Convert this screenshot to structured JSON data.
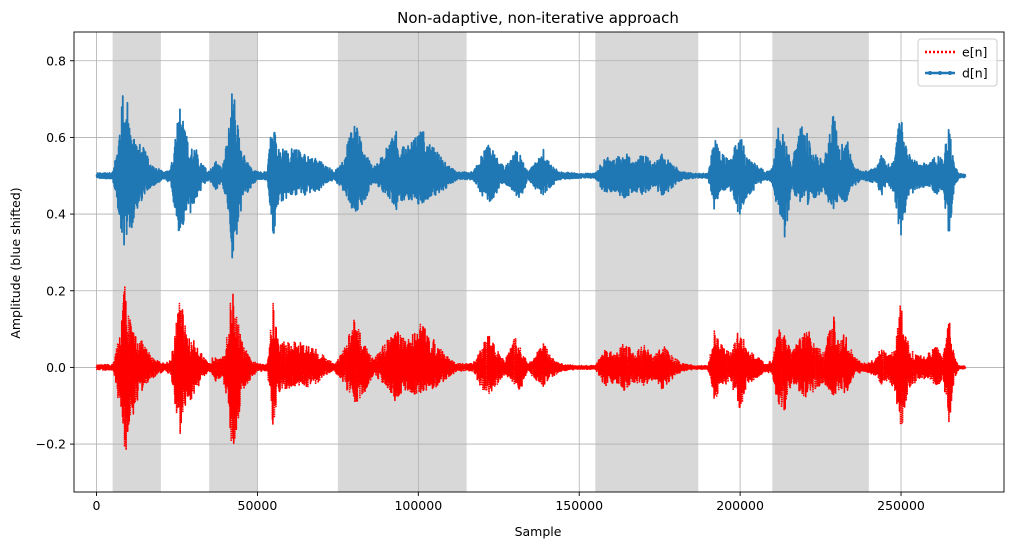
{
  "chart_data": {
    "type": "line",
    "title": "Non-adaptive, non-iterative approach",
    "xlabel": "Sample",
    "ylabel": "Amplitude (blue shifted)",
    "xlim": [
      -7000,
      282000
    ],
    "ylim": [
      -0.325,
      0.875
    ],
    "grid": true,
    "legend_position": "top-right",
    "x_ticks": [
      0,
      50000,
      100000,
      150000,
      200000,
      250000
    ],
    "x_tick_labels": [
      "0",
      "50000",
      "100000",
      "150000",
      "200000",
      "250000"
    ],
    "y_ticks": [
      -0.2,
      0.0,
      0.2,
      0.4,
      0.6,
      0.8
    ],
    "y_tick_labels": [
      "−0.2",
      "0.0",
      "0.2",
      "0.4",
      "0.6",
      "0.8"
    ],
    "shaded_regions": [
      [
        5000,
        20000
      ],
      [
        35000,
        50000
      ],
      [
        75000,
        115000
      ],
      [
        155000,
        187000
      ],
      [
        210000,
        240000
      ]
    ],
    "shade_color": "#d6d6d6",
    "x_max": 270000,
    "series": [
      {
        "name": "e[n]",
        "color": "#ff0000",
        "style": "dotted",
        "baseline": 0.0,
        "envelope": [
          [
            0,
            0.006,
            -0.006
          ],
          [
            5000,
            0.008,
            -0.008
          ],
          [
            7500,
            0.1,
            -0.12
          ],
          [
            8500,
            0.24,
            -0.26
          ],
          [
            9500,
            0.18,
            -0.2
          ],
          [
            11000,
            0.1,
            -0.14
          ],
          [
            13000,
            0.08,
            -0.08
          ],
          [
            15000,
            0.06,
            -0.05
          ],
          [
            17000,
            0.03,
            -0.03
          ],
          [
            19000,
            0.02,
            -0.02
          ],
          [
            21000,
            0.01,
            -0.01
          ],
          [
            23000,
            0.02,
            -0.02
          ],
          [
            26000,
            0.19,
            -0.18
          ],
          [
            27500,
            0.12,
            -0.1
          ],
          [
            29000,
            0.07,
            -0.1
          ],
          [
            31000,
            0.07,
            -0.06
          ],
          [
            33000,
            0.03,
            -0.03
          ],
          [
            35000,
            0.01,
            -0.01
          ],
          [
            37000,
            0.04,
            -0.04
          ],
          [
            39000,
            0.02,
            -0.02
          ],
          [
            41000,
            0.1,
            -0.1
          ],
          [
            42000,
            0.22,
            -0.24
          ],
          [
            43500,
            0.14,
            -0.17
          ],
          [
            45500,
            0.06,
            -0.06
          ],
          [
            48000,
            0.02,
            -0.03
          ],
          [
            50000,
            0.01,
            -0.01
          ],
          [
            53000,
            0.01,
            -0.01
          ],
          [
            55000,
            0.18,
            -0.18
          ],
          [
            56500,
            0.07,
            -0.07
          ],
          [
            59000,
            0.07,
            -0.06
          ],
          [
            62000,
            0.07,
            -0.05
          ],
          [
            65000,
            0.06,
            -0.05
          ],
          [
            68000,
            0.05,
            -0.05
          ],
          [
            71000,
            0.03,
            -0.02
          ],
          [
            74000,
            0.01,
            -0.01
          ],
          [
            77000,
            0.05,
            -0.05
          ],
          [
            80000,
            0.13,
            -0.1
          ],
          [
            83000,
            0.07,
            -0.07
          ],
          [
            86000,
            0.02,
            -0.02
          ],
          [
            90000,
            0.07,
            -0.05
          ],
          [
            93000,
            0.11,
            -0.09
          ],
          [
            96000,
            0.07,
            -0.06
          ],
          [
            99000,
            0.1,
            -0.07
          ],
          [
            101000,
            0.12,
            -0.08
          ],
          [
            103000,
            0.09,
            -0.06
          ],
          [
            106000,
            0.06,
            -0.05
          ],
          [
            109000,
            0.03,
            -0.03
          ],
          [
            112000,
            0.01,
            -0.01
          ],
          [
            117000,
            0.01,
            -0.01
          ],
          [
            120000,
            0.06,
            -0.06
          ],
          [
            122000,
            0.09,
            -0.07
          ],
          [
            124000,
            0.05,
            -0.05
          ],
          [
            127000,
            0.02,
            -0.02
          ],
          [
            130000,
            0.08,
            -0.05
          ],
          [
            132000,
            0.05,
            -0.06
          ],
          [
            134000,
            0.01,
            -0.01
          ],
          [
            137000,
            0.04,
            -0.04
          ],
          [
            139000,
            0.07,
            -0.05
          ],
          [
            141000,
            0.03,
            -0.03
          ],
          [
            144000,
            0.01,
            -0.01
          ],
          [
            150000,
            0.005,
            -0.005
          ],
          [
            155000,
            0.005,
            -0.005
          ],
          [
            158000,
            0.05,
            -0.05
          ],
          [
            161000,
            0.04,
            -0.04
          ],
          [
            164000,
            0.07,
            -0.06
          ],
          [
            167000,
            0.04,
            -0.04
          ],
          [
            170000,
            0.06,
            -0.05
          ],
          [
            173000,
            0.03,
            -0.03
          ],
          [
            176000,
            0.06,
            -0.06
          ],
          [
            179000,
            0.03,
            -0.03
          ],
          [
            182000,
            0.01,
            -0.01
          ],
          [
            186000,
            0.005,
            -0.005
          ],
          [
            190000,
            0.005,
            -0.005
          ],
          [
            192000,
            0.1,
            -0.09
          ],
          [
            194000,
            0.06,
            -0.05
          ],
          [
            197000,
            0.04,
            -0.04
          ],
          [
            200000,
            0.11,
            -0.11
          ],
          [
            202000,
            0.05,
            -0.06
          ],
          [
            205000,
            0.03,
            -0.03
          ],
          [
            208000,
            0.01,
            -0.01
          ],
          [
            210000,
            0.02,
            -0.02
          ],
          [
            212000,
            0.12,
            -0.11
          ],
          [
            214000,
            0.09,
            -0.12
          ],
          [
            216000,
            0.04,
            -0.04
          ],
          [
            219000,
            0.08,
            -0.07
          ],
          [
            221000,
            0.11,
            -0.08
          ],
          [
            223000,
            0.06,
            -0.06
          ],
          [
            226000,
            0.04,
            -0.04
          ],
          [
            229000,
            0.14,
            -0.08
          ],
          [
            231000,
            0.07,
            -0.06
          ],
          [
            233000,
            0.11,
            -0.07
          ],
          [
            235000,
            0.03,
            -0.03
          ],
          [
            238000,
            0.01,
            -0.01
          ],
          [
            242000,
            0.02,
            -0.02
          ],
          [
            244000,
            0.06,
            -0.05
          ],
          [
            246000,
            0.03,
            -0.03
          ],
          [
            248000,
            0.05,
            -0.06
          ],
          [
            250000,
            0.18,
            -0.17
          ],
          [
            251500,
            0.09,
            -0.09
          ],
          [
            253000,
            0.05,
            -0.05
          ],
          [
            256000,
            0.03,
            -0.03
          ],
          [
            259000,
            0.04,
            -0.03
          ],
          [
            261000,
            0.06,
            -0.05
          ],
          [
            263000,
            0.04,
            -0.04
          ],
          [
            265000,
            0.13,
            -0.16
          ],
          [
            266500,
            0.03,
            -0.03
          ],
          [
            268000,
            0.005,
            -0.005
          ],
          [
            270000,
            0.003,
            -0.003
          ]
        ]
      },
      {
        "name": "d[n]",
        "color": "#1f77b4",
        "style": "solid-markers",
        "baseline": 0.5,
        "envelope": [
          [
            0,
            0.007,
            -0.007
          ],
          [
            5000,
            0.008,
            -0.008
          ],
          [
            7500,
            0.12,
            -0.13
          ],
          [
            8500,
            0.3,
            -0.22
          ],
          [
            9500,
            0.2,
            -0.18
          ],
          [
            11000,
            0.1,
            -0.14
          ],
          [
            13000,
            0.09,
            -0.08
          ],
          [
            15000,
            0.07,
            -0.05
          ],
          [
            17000,
            0.03,
            -0.03
          ],
          [
            19000,
            0.02,
            -0.02
          ],
          [
            21000,
            0.01,
            -0.01
          ],
          [
            23000,
            0.02,
            -0.02
          ],
          [
            26000,
            0.2,
            -0.18
          ],
          [
            27500,
            0.12,
            -0.1
          ],
          [
            29000,
            0.07,
            -0.1
          ],
          [
            31000,
            0.07,
            -0.06
          ],
          [
            33000,
            0.03,
            -0.03
          ],
          [
            35000,
            0.01,
            -0.01
          ],
          [
            37000,
            0.04,
            -0.04
          ],
          [
            39000,
            0.02,
            -0.02
          ],
          [
            41000,
            0.12,
            -0.1
          ],
          [
            42000,
            0.27,
            -0.24
          ],
          [
            43500,
            0.16,
            -0.17
          ],
          [
            45500,
            0.06,
            -0.06
          ],
          [
            48000,
            0.02,
            -0.03
          ],
          [
            50000,
            0.01,
            -0.01
          ],
          [
            53000,
            0.01,
            -0.01
          ],
          [
            55000,
            0.18,
            -0.19
          ],
          [
            56500,
            0.07,
            -0.07
          ],
          [
            59000,
            0.07,
            -0.06
          ],
          [
            62000,
            0.07,
            -0.05
          ],
          [
            65000,
            0.06,
            -0.05
          ],
          [
            68000,
            0.05,
            -0.05
          ],
          [
            71000,
            0.03,
            -0.02
          ],
          [
            74000,
            0.01,
            -0.01
          ],
          [
            77000,
            0.05,
            -0.05
          ],
          [
            80000,
            0.15,
            -0.1
          ],
          [
            83000,
            0.07,
            -0.07
          ],
          [
            86000,
            0.02,
            -0.02
          ],
          [
            90000,
            0.07,
            -0.05
          ],
          [
            93000,
            0.12,
            -0.09
          ],
          [
            96000,
            0.07,
            -0.06
          ],
          [
            99000,
            0.1,
            -0.07
          ],
          [
            101000,
            0.13,
            -0.08
          ],
          [
            103000,
            0.09,
            -0.06
          ],
          [
            106000,
            0.06,
            -0.05
          ],
          [
            109000,
            0.03,
            -0.03
          ],
          [
            112000,
            0.01,
            -0.01
          ],
          [
            117000,
            0.01,
            -0.01
          ],
          [
            120000,
            0.06,
            -0.06
          ],
          [
            122000,
            0.1,
            -0.07
          ],
          [
            124000,
            0.05,
            -0.05
          ],
          [
            127000,
            0.02,
            -0.02
          ],
          [
            130000,
            0.08,
            -0.05
          ],
          [
            132000,
            0.05,
            -0.06
          ],
          [
            134000,
            0.01,
            -0.01
          ],
          [
            137000,
            0.04,
            -0.04
          ],
          [
            139000,
            0.07,
            -0.05
          ],
          [
            141000,
            0.03,
            -0.03
          ],
          [
            144000,
            0.01,
            -0.01
          ],
          [
            150000,
            0.006,
            -0.006
          ],
          [
            155000,
            0.006,
            -0.006
          ],
          [
            158000,
            0.05,
            -0.05
          ],
          [
            161000,
            0.04,
            -0.04
          ],
          [
            164000,
            0.07,
            -0.06
          ],
          [
            167000,
            0.04,
            -0.04
          ],
          [
            170000,
            0.06,
            -0.05
          ],
          [
            173000,
            0.03,
            -0.03
          ],
          [
            176000,
            0.06,
            -0.06
          ],
          [
            179000,
            0.03,
            -0.03
          ],
          [
            182000,
            0.01,
            -0.01
          ],
          [
            186000,
            0.006,
            -0.006
          ],
          [
            190000,
            0.006,
            -0.006
          ],
          [
            192000,
            0.1,
            -0.09
          ],
          [
            194000,
            0.06,
            -0.05
          ],
          [
            197000,
            0.04,
            -0.04
          ],
          [
            200000,
            0.12,
            -0.11
          ],
          [
            202000,
            0.05,
            -0.06
          ],
          [
            205000,
            0.03,
            -0.03
          ],
          [
            208000,
            0.01,
            -0.01
          ],
          [
            210000,
            0.02,
            -0.02
          ],
          [
            212000,
            0.14,
            -0.11
          ],
          [
            214000,
            0.09,
            -0.17
          ],
          [
            216000,
            0.04,
            -0.04
          ],
          [
            219000,
            0.13,
            -0.07
          ],
          [
            221000,
            0.11,
            -0.08
          ],
          [
            223000,
            0.06,
            -0.06
          ],
          [
            226000,
            0.04,
            -0.04
          ],
          [
            229000,
            0.17,
            -0.1
          ],
          [
            231000,
            0.07,
            -0.06
          ],
          [
            233000,
            0.11,
            -0.07
          ],
          [
            235000,
            0.03,
            -0.03
          ],
          [
            238000,
            0.01,
            -0.01
          ],
          [
            242000,
            0.02,
            -0.02
          ],
          [
            244000,
            0.06,
            -0.05
          ],
          [
            246000,
            0.03,
            -0.03
          ],
          [
            248000,
            0.05,
            -0.06
          ],
          [
            250000,
            0.19,
            -0.17
          ],
          [
            251500,
            0.09,
            -0.09
          ],
          [
            253000,
            0.05,
            -0.05
          ],
          [
            256000,
            0.03,
            -0.03
          ],
          [
            259000,
            0.04,
            -0.03
          ],
          [
            261000,
            0.06,
            -0.05
          ],
          [
            263000,
            0.04,
            -0.04
          ],
          [
            265000,
            0.14,
            -0.17
          ],
          [
            266500,
            0.03,
            -0.03
          ],
          [
            268000,
            0.006,
            -0.006
          ],
          [
            270000,
            0.004,
            -0.004
          ]
        ]
      }
    ]
  }
}
